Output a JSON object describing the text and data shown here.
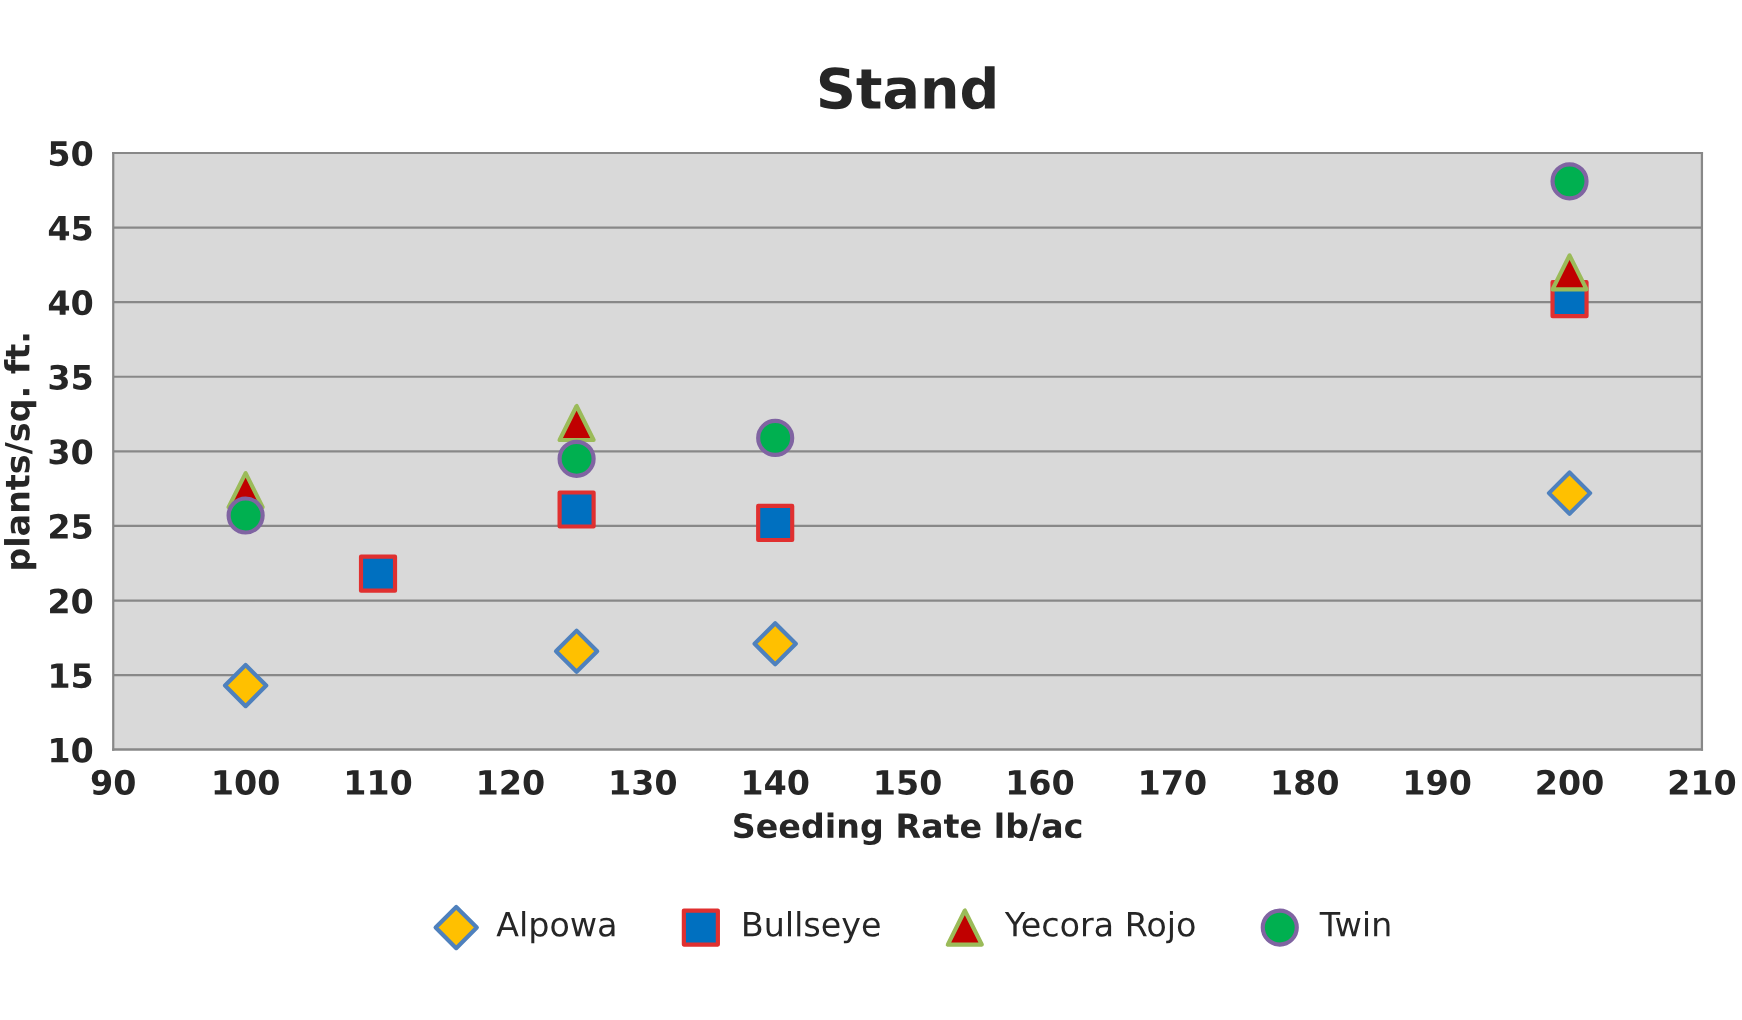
{
  "chart_data": {
    "type": "scatter",
    "title": "Stand",
    "xlabel": "Seeding Rate lb/ac",
    "ylabel": "plants/sq. ft.",
    "xlim": [
      90,
      210
    ],
    "xticks": [
      90,
      100,
      110,
      120,
      130,
      140,
      150,
      160,
      170,
      180,
      190,
      200,
      210
    ],
    "ylim": [
      10,
      50
    ],
    "yticks": [
      10,
      15,
      20,
      25,
      30,
      35,
      40,
      45,
      50
    ],
    "grid": "y",
    "legend": "bottom",
    "series": [
      {
        "name": "Alpowa",
        "color": "#ffc000",
        "marker": "diamond",
        "x": [
          100,
          125,
          140,
          200
        ],
        "values": [
          14.3,
          16.6,
          17.1,
          27.2
        ]
      },
      {
        "name": "Bullseye",
        "color": "#0070c0",
        "marker": "square",
        "x": [
          110,
          125,
          140,
          200
        ],
        "values": [
          21.8,
          26.1,
          25.2,
          40.2
        ]
      },
      {
        "name": "Yecora Rojo",
        "color": "#c00000",
        "marker": "triangle",
        "x": [
          100,
          125,
          140,
          200
        ],
        "values": [
          27.4,
          31.9,
          null,
          42.0
        ]
      },
      {
        "name": "Twin",
        "color": "#00b050",
        "marker": "circle",
        "x": [
          100,
          125,
          140,
          200
        ],
        "values": [
          25.7,
          29.5,
          30.9,
          48.1
        ]
      }
    ]
  }
}
